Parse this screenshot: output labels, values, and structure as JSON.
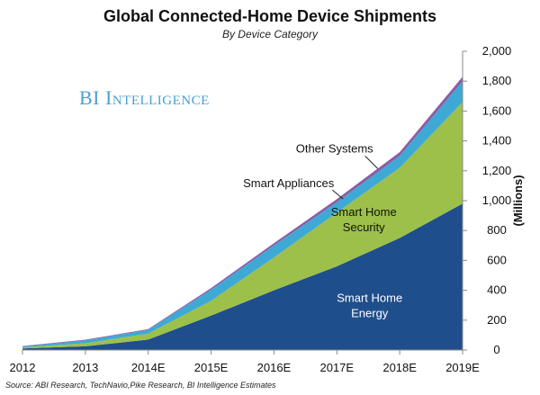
{
  "chart_data": {
    "type": "area",
    "title": "Global Connected-Home Device Shipments",
    "subtitle": "By Device Category",
    "brand": "BI Intelligence",
    "source": "Source: ABI Research, TechNavio,Pike Research, BI Intelligence Estimates",
    "ylabel": "(Millions)",
    "ylim": [
      0,
      2000
    ],
    "yticks": [
      "0",
      "200",
      "400",
      "600",
      "800",
      "1,000",
      "1,200",
      "1,400",
      "1,600",
      "1,800",
      "2,000"
    ],
    "categories": [
      "2012",
      "2013",
      "2014E",
      "2015E",
      "2016E",
      "2017E",
      "2018E",
      "2019E"
    ],
    "stacked": true,
    "series": [
      {
        "name": "Smart Home Energy",
        "color": "#1f4e8c",
        "values": [
          10,
          25,
          70,
          230,
          400,
          560,
          750,
          980
        ]
      },
      {
        "name": "Smart Home Security",
        "color": "#9dc04a",
        "values": [
          8,
          20,
          40,
          100,
          220,
          360,
          470,
          680
        ]
      },
      {
        "name": "Smart Appliances",
        "color": "#3fa9d6",
        "values": [
          7,
          20,
          25,
          75,
          80,
          70,
          80,
          140
        ]
      },
      {
        "name": "Other Systems",
        "color": "#8b5ca6",
        "values": [
          2,
          4,
          5,
          10,
          15,
          20,
          25,
          30
        ]
      }
    ],
    "annotations": [
      {
        "text": "Other Systems",
        "series": "Other Systems"
      },
      {
        "text": "Smart Appliances",
        "series": "Smart Appliances"
      },
      {
        "text": "Smart Home",
        "series": "Smart Home Security"
      },
      {
        "text": "Security",
        "series": "Smart Home Security"
      },
      {
        "text": "Smart Home",
        "series": "Smart Home Energy"
      },
      {
        "text": "Energy",
        "series": "Smart Home Energy"
      }
    ],
    "grid": false
  }
}
